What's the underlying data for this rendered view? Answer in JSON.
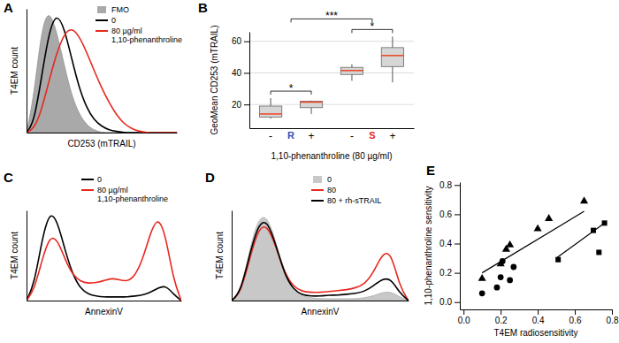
{
  "chart_data": [
    {
      "type": "line",
      "panel": "A",
      "x_label": "CD253 (mTRAIL)",
      "y_label": "T4EM count",
      "tick_labels": false,
      "legend": "upper right",
      "xlim": [
        0,
        100
      ],
      "ylim": [
        0,
        100
      ],
      "x": [
        0,
        5,
        10,
        15,
        20,
        25,
        30,
        35,
        40,
        45,
        50,
        55,
        60,
        65,
        70,
        75,
        80,
        85,
        90,
        95,
        100
      ],
      "series": [
        {
          "name": "FMO",
          "type": "area",
          "color": "#a9a9a9",
          "values": [
            0,
            30,
            85,
            100,
            82,
            55,
            30,
            15,
            6,
            2,
            0,
            0,
            0,
            0,
            0,
            0,
            0,
            0,
            0,
            0,
            0
          ]
        },
        {
          "name": "0",
          "type": "line",
          "color": "#000000",
          "values": [
            0,
            8,
            45,
            82,
            97,
            85,
            60,
            36,
            20,
            10,
            5,
            2,
            1,
            0,
            0,
            0,
            0,
            0,
            0,
            0,
            0
          ]
        },
        {
          "name": "80 µg/ml\n1,10-phenanthroline",
          "type": "line",
          "color": "#e8281e",
          "values": [
            0,
            3,
            18,
            42,
            64,
            80,
            85,
            78,
            65,
            50,
            36,
            24,
            14,
            7,
            3,
            1,
            0,
            0,
            0,
            0,
            0
          ]
        }
      ]
    },
    {
      "type": "box",
      "panel": "B",
      "y_label": "GeoMean CD253 (mTRAIL)",
      "x_label": "1,10-phenanthroline (80 µg/ml)",
      "categories": [
        "-",
        "+",
        "-",
        "+"
      ],
      "groups": [
        {
          "name": "R",
          "color": "#2a4fb8"
        },
        {
          "name": "S",
          "color": "#e8281e"
        }
      ],
      "min": [
        11,
        14,
        35,
        34
      ],
      "q1": [
        12,
        18,
        39,
        44
      ],
      "median": [
        14,
        21.5,
        41.5,
        51
      ],
      "q3": [
        19,
        22,
        43.5,
        56
      ],
      "max": [
        24,
        22.5,
        45.5,
        63
      ],
      "ylim": [
        5,
        66
      ],
      "yticks": [
        20,
        40,
        60
      ],
      "grid": true,
      "annotations": [
        {
          "text": "*",
          "groups": [
            "R"
          ]
        },
        {
          "text": "***",
          "groups": [
            "R",
            "S"
          ]
        },
        {
          "text": "*",
          "groups": [
            "S"
          ]
        }
      ]
    },
    {
      "type": "line",
      "panel": "C",
      "x_label": "AnnexinV",
      "y_label": "T4EM count",
      "tick_labels": false,
      "legend": "upper center",
      "xlim": [
        0,
        100
      ],
      "ylim": [
        0,
        100
      ],
      "x": [
        0,
        5,
        10,
        15,
        20,
        25,
        30,
        35,
        40,
        45,
        50,
        55,
        60,
        65,
        70,
        75,
        80,
        85,
        90,
        95,
        100
      ],
      "series": [
        {
          "name": "0",
          "type": "line",
          "color": "#000000",
          "values": [
            0,
            18,
            68,
            100,
            88,
            55,
            28,
            13,
            7,
            5,
            4,
            4,
            4,
            4,
            5,
            6,
            9,
            14,
            17,
            7,
            0
          ]
        },
        {
          "name": "80 µg/ml\n1,10-phenanthroline",
          "type": "line",
          "color": "#e8281e",
          "values": [
            0,
            12,
            45,
            72,
            68,
            45,
            28,
            21,
            19,
            20,
            22,
            25,
            23,
            21,
            27,
            45,
            75,
            94,
            72,
            22,
            0
          ]
        }
      ]
    },
    {
      "type": "line",
      "panel": "D",
      "x_label": "AnnexinV",
      "y_label": "T4EM count",
      "tick_labels": false,
      "legend": "upper right",
      "xlim": [
        0,
        100
      ],
      "ylim": [
        0,
        100
      ],
      "x": [
        0,
        5,
        10,
        15,
        20,
        25,
        30,
        35,
        40,
        45,
        50,
        55,
        60,
        65,
        70,
        75,
        80,
        85,
        90,
        95,
        100
      ],
      "series": [
        {
          "name": "0",
          "type": "area",
          "color": "#c8c8c8",
          "values": [
            0,
            10,
            55,
            92,
            95,
            65,
            30,
            12,
            5,
            3,
            2,
            2,
            2,
            2,
            2,
            3,
            5,
            9,
            10,
            4,
            0
          ]
        },
        {
          "name": "80",
          "type": "line",
          "color": "#e8281e",
          "values": [
            0,
            8,
            45,
            80,
            85,
            60,
            30,
            15,
            10,
            9,
            9,
            10,
            11,
            12,
            14,
            18,
            30,
            52,
            55,
            15,
            0
          ]
        },
        {
          "name": "80 + rh-sTRAIL",
          "type": "line",
          "color": "#000000",
          "values": [
            0,
            9,
            50,
            85,
            90,
            62,
            28,
            12,
            6,
            5,
            5,
            6,
            6,
            7,
            8,
            10,
            16,
            24,
            25,
            8,
            0
          ]
        }
      ]
    },
    {
      "type": "scatter",
      "panel": "E",
      "x_label": "T4EM radiosensitivity",
      "y_label": "1,10-phenanthroline sensitivity",
      "xlim": [
        -0.02,
        0.8
      ],
      "ylim": [
        -0.05,
        0.82
      ],
      "xticks": [
        {
          "value": 0,
          "label": "0.0"
        },
        0.2,
        0.4,
        0.6,
        0.8
      ],
      "yticks": [
        {
          "value": 0,
          "label": "0.0"
        },
        0.2,
        0.4,
        0.6,
        0.8
      ],
      "series": [
        {
          "type": "scatter",
          "marker": "triangle",
          "color": "#000000",
          "x": [
            0.1,
            0.2,
            0.23,
            0.25,
            0.4,
            0.46,
            0.65
          ],
          "values": [
            0.16,
            0.26,
            0.36,
            0.39,
            0.5,
            0.57,
            0.69
          ]
        },
        {
          "type": "scatter",
          "marker": "circle",
          "color": "#000000",
          "x": [
            0.1,
            0.18,
            0.2,
            0.25,
            0.27,
            0.21
          ],
          "values": [
            0.06,
            0.1,
            0.17,
            0.15,
            0.24,
            0.28
          ]
        },
        {
          "type": "scatter",
          "marker": "square",
          "color": "#000000",
          "x": [
            0.51,
            0.7,
            0.76,
            0.73
          ],
          "values": [
            0.29,
            0.49,
            0.54,
            0.34
          ]
        },
        {
          "type": "line",
          "color": "#000000",
          "x": [
            0.1,
            0.65
          ],
          "values": [
            0.2,
            0.62
          ]
        },
        {
          "type": "line",
          "color": "#000000",
          "x": [
            0.5,
            0.76
          ],
          "values": [
            0.3,
            0.54
          ]
        }
      ]
    }
  ]
}
